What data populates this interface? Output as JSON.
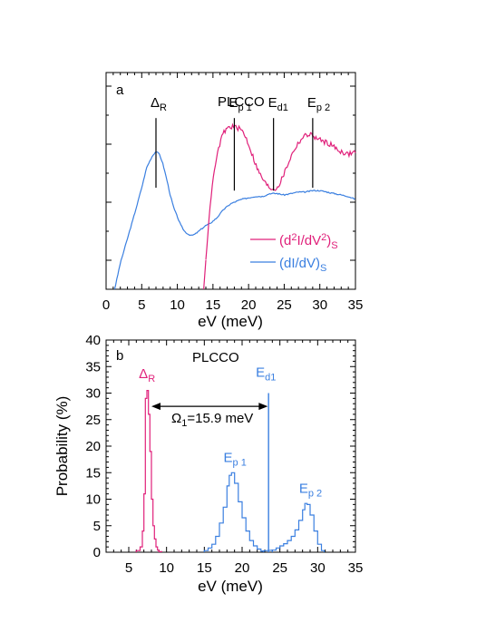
{
  "chart_data": [
    {
      "type": "line",
      "panel_label": "a",
      "title": "PLCCO",
      "xlabel": "eV (meV)",
      "ylabel": "",
      "xlim": [
        0,
        35
      ],
      "xticks": [
        0,
        5,
        10,
        15,
        20,
        25,
        30,
        35
      ],
      "yticks_labeled": false,
      "grid": false,
      "legend_position": "right",
      "colors": {
        "d2": "#e0207a",
        "d1": "#3a7fe0"
      },
      "series": [
        {
          "key": "dIdV",
          "legend": {
            "main": "(dI/dV)",
            "sub": "S"
          },
          "x": [
            1.2,
            2.0,
            3.0,
            4.0,
            5.0,
            5.7,
            6.5,
            7.0,
            7.5,
            8.0,
            8.5,
            9.0,
            9.5,
            10.0,
            10.5,
            11.0,
            11.5,
            12.0,
            12.5,
            13.0,
            13.5,
            14.0,
            14.5,
            15.0,
            15.5,
            16.0,
            16.5,
            17.0,
            17.5,
            18.0,
            19.0,
            20.0,
            21.0,
            22.0,
            23.0,
            24.0,
            25.0,
            26.0,
            27.0,
            28.0,
            29.0,
            30.0,
            31.0,
            32.0,
            33.0,
            34.0,
            35.0
          ],
          "y": [
            0.0,
            0.18,
            0.35,
            0.52,
            0.7,
            0.84,
            0.92,
            0.95,
            0.93,
            0.86,
            0.76,
            0.65,
            0.56,
            0.5,
            0.44,
            0.4,
            0.38,
            0.37,
            0.38,
            0.4,
            0.42,
            0.44,
            0.45,
            0.47,
            0.49,
            0.52,
            0.55,
            0.57,
            0.59,
            0.6,
            0.62,
            0.63,
            0.64,
            0.64,
            0.66,
            0.66,
            0.65,
            0.66,
            0.67,
            0.67,
            0.68,
            0.68,
            0.67,
            0.66,
            0.65,
            0.64,
            0.62
          ]
        },
        {
          "key": "d2IdV2",
          "legend": {
            "main": "(d",
            "sup1": "2",
            "mid": "I/dV",
            "sup2": "2",
            "end": ")",
            "sub": "S"
          },
          "x": [
            14.0,
            14.5,
            15.0,
            15.5,
            16.0,
            16.5,
            17.0,
            17.5,
            18.0,
            18.5,
            19.0,
            19.5,
            20.0,
            20.5,
            21.0,
            21.5,
            22.0,
            22.5,
            23.0,
            23.5,
            24.0,
            24.5,
            25.0,
            25.5,
            26.0,
            26.5,
            27.0,
            27.5,
            28.0,
            28.5,
            29.0,
            29.5,
            30.0,
            30.5,
            31.0,
            31.5,
            32.0,
            32.5,
            33.0,
            33.5,
            34.0,
            34.5,
            35.0
          ],
          "y": [
            0.2,
            0.52,
            0.76,
            0.9,
            1.01,
            1.08,
            1.11,
            1.12,
            1.12,
            1.11,
            1.1,
            1.06,
            1.0,
            0.93,
            0.86,
            0.8,
            0.76,
            0.72,
            0.7,
            0.69,
            0.7,
            0.74,
            0.8,
            0.86,
            0.92,
            0.97,
            1.01,
            1.04,
            1.06,
            1.07,
            1.06,
            1.04,
            1.03,
            1.02,
            1.01,
            1.0,
            0.98,
            0.96,
            0.95,
            0.94,
            0.93,
            0.94,
            0.95
          ]
        }
      ],
      "markers": [
        {
          "main": "Δ",
          "sub": "R",
          "x": 7.0,
          "y_top": 1.28,
          "y_bottom": 0.7
        },
        {
          "main": "E",
          "sub": "p 1",
          "x": 18.0,
          "y_top": 1.28,
          "y_bottom": 0.68
        },
        {
          "main": "E",
          "sub": "d1",
          "x": 23.5,
          "y_top": 1.28,
          "y_bottom": 0.68
        },
        {
          "main": "E",
          "sub": "p 2",
          "x": 29.0,
          "y_top": 1.28,
          "y_bottom": 0.7
        }
      ]
    },
    {
      "type": "histogram",
      "panel_label": "b",
      "title": "PLCCO",
      "xlabel": "eV (meV)",
      "ylabel": "Probability (%)",
      "xlim": [
        2,
        35
      ],
      "ylim": [
        0,
        40
      ],
      "xticks": [
        5,
        10,
        15,
        20,
        25,
        30,
        35
      ],
      "yticks": [
        0,
        5,
        10,
        15,
        20,
        25,
        30,
        35,
        40
      ],
      "grid": false,
      "colors": {
        "delta": "#e0207a",
        "modes": "#3a7fe0"
      },
      "series": [
        {
          "key": "delta_R",
          "label": {
            "main": "Δ",
            "sub": "R"
          },
          "label_pos": [
            7.3,
            32.8
          ],
          "x": [
            6.0,
            6.5,
            6.8,
            7.0,
            7.2,
            7.4,
            7.6,
            7.8,
            8.0,
            8.2,
            8.4,
            8.6,
            8.8,
            9.0
          ],
          "y": [
            0.3,
            1.0,
            4.0,
            11.0,
            29.0,
            30.5,
            26.0,
            19.0,
            10.0,
            5.0,
            2.5,
            1.0,
            0.4,
            0.1
          ]
        },
        {
          "key": "E_p1",
          "label": {
            "main": "E",
            "sub": "p 1"
          },
          "label_pos": [
            18.5,
            17.0
          ],
          "x": [
            15.0,
            15.5,
            16.0,
            16.5,
            17.0,
            17.5,
            18.0,
            18.3,
            18.6,
            19.0,
            19.5,
            20.0,
            20.5,
            21.0,
            21.5,
            22.0,
            22.5
          ],
          "y": [
            0.3,
            0.8,
            1.5,
            3.0,
            5.5,
            8.5,
            12.5,
            14.5,
            15.0,
            13.0,
            9.5,
            6.5,
            4.0,
            2.2,
            1.2,
            0.6,
            0.2
          ]
        },
        {
          "key": "E_p2",
          "label": {
            "main": "E",
            "sub": "p 2"
          },
          "label_pos": [
            28.5,
            11.2
          ],
          "x": [
            24.0,
            24.5,
            25.0,
            25.5,
            26.0,
            26.5,
            27.0,
            27.5,
            28.0,
            28.3,
            28.6,
            29.0,
            29.5,
            30.0,
            30.5
          ],
          "y": [
            0.4,
            0.8,
            1.2,
            1.6,
            2.2,
            3.0,
            4.2,
            6.0,
            8.0,
            9.2,
            9.0,
            7.0,
            4.0,
            1.5,
            0.3
          ]
        }
      ],
      "vertical_line": {
        "label": {
          "main": "E",
          "sub": "d1"
        },
        "x": 23.5,
        "y_top": 30.0,
        "color": "#3a7fe0"
      },
      "annotation": {
        "main": "Ω",
        "sub": "1",
        "rest": "=15.9 meV",
        "x_from": 8.0,
        "x_to": 23.4,
        "y": 27.5
      }
    }
  ]
}
